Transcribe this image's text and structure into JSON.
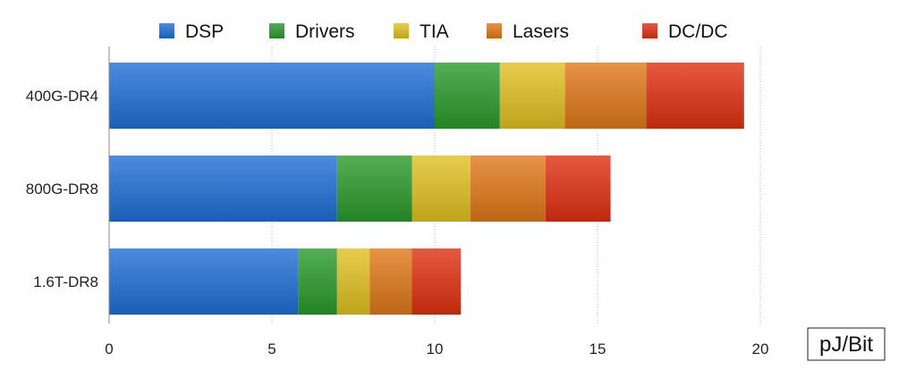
{
  "chart_data": {
    "type": "bar",
    "orientation": "horizontal",
    "stacked": true,
    "categories": [
      "400G-DR4",
      "800G-DR8",
      "1.6T-DR8"
    ],
    "series": [
      {
        "name": "DSP",
        "color": "#1f6fd6",
        "values": [
          10.0,
          7.0,
          5.8
        ]
      },
      {
        "name": "Drivers",
        "color": "#2a9a2a",
        "values": [
          2.0,
          2.3,
          1.2
        ]
      },
      {
        "name": "TIA",
        "color": "#e0c020",
        "values": [
          2.0,
          1.8,
          1.0
        ]
      },
      {
        "name": "Lasers",
        "color": "#e07818",
        "values": [
          2.5,
          2.3,
          1.3
        ]
      },
      {
        "name": "DC/DC",
        "color": "#e03010",
        "values": [
          3.0,
          2.0,
          1.5
        ]
      }
    ],
    "xlabel": "pJ/Bit",
    "xlim": [
      0,
      20
    ],
    "xticks": [
      "0",
      "5",
      "10",
      "15",
      "20"
    ],
    "grid": true,
    "legend": "top"
  }
}
